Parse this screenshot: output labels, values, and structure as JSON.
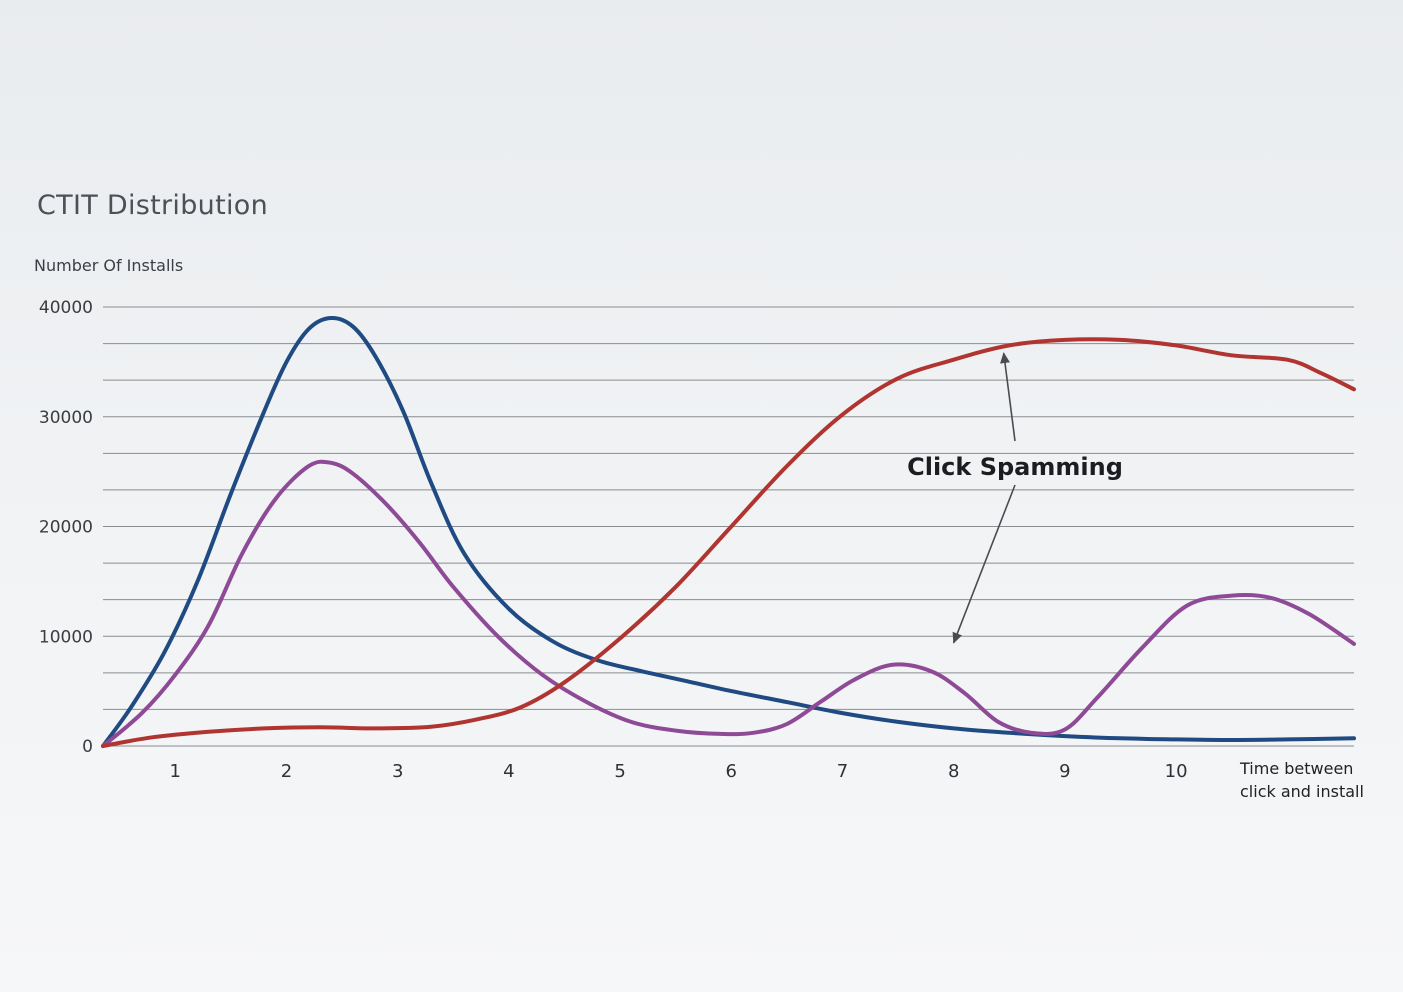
{
  "chart_data": {
    "type": "line",
    "title": "CTIT Distribution",
    "ylabel": "Number Of Installs",
    "xlabel": "Time between click and install",
    "xlim": [
      0.35,
      11.6
    ],
    "ylim": [
      0,
      40000
    ],
    "y_ticks": [
      "0",
      "10000",
      "20000",
      "30000",
      "40000"
    ],
    "y_tick_values": [
      0,
      10000,
      20000,
      30000,
      40000
    ],
    "x_ticks": [
      "1",
      "2",
      "3",
      "4",
      "5",
      "6",
      "7",
      "8",
      "9",
      "10"
    ],
    "x_tick_values": [
      1,
      2,
      3,
      4,
      5,
      6,
      7,
      8,
      9,
      10
    ],
    "gridlines": [
      0,
      3333,
      6667,
      10000,
      13333,
      16667,
      20000,
      23333,
      26667,
      30000,
      33333,
      36667,
      40000
    ],
    "grid": true,
    "series": [
      {
        "color": "#1f4a82",
        "x": [
          0.35,
          0.6,
          0.9,
          1.2,
          1.5,
          1.8,
          2.0,
          2.2,
          2.4,
          2.6,
          2.8,
          3.05,
          3.3,
          3.6,
          4.0,
          4.4,
          4.8,
          5.2,
          5.6,
          6.0,
          6.5,
          7.0,
          7.5,
          8.0,
          8.5,
          9.0,
          9.5,
          10.0,
          10.5,
          11.0,
          11.6
        ],
        "values": [
          0,
          3500,
          8500,
          15000,
          23000,
          30500,
          35000,
          38000,
          39000,
          38200,
          35500,
          30500,
          24000,
          17500,
          12500,
          9500,
          7800,
          6800,
          5900,
          5000,
          4000,
          3000,
          2200,
          1600,
          1200,
          900,
          700,
          600,
          550,
          600,
          700
        ]
      },
      {
        "color": "#8e4a96",
        "x": [
          0.35,
          0.7,
          1.0,
          1.3,
          1.6,
          1.9,
          2.2,
          2.4,
          2.6,
          2.9,
          3.2,
          3.5,
          3.9,
          4.3,
          4.7,
          5.1,
          5.5,
          5.9,
          6.2,
          6.5,
          6.8,
          7.1,
          7.45,
          7.8,
          8.1,
          8.4,
          8.7,
          9.0,
          9.3,
          9.7,
          10.1,
          10.5,
          10.85,
          11.2,
          11.6
        ],
        "values": [
          0,
          3000,
          6500,
          11000,
          17500,
          22500,
          25500,
          25800,
          24800,
          22000,
          18500,
          14500,
          10000,
          6500,
          4000,
          2200,
          1400,
          1100,
          1200,
          2000,
          4000,
          6000,
          7400,
          6800,
          4800,
          2200,
          1200,
          1500,
          4500,
          9000,
          12800,
          13700,
          13500,
          12000,
          9300
        ]
      },
      {
        "color": "#b03530",
        "x": [
          0.35,
          0.8,
          1.3,
          1.8,
          2.3,
          2.8,
          3.3,
          3.7,
          4.1,
          4.5,
          5.0,
          5.5,
          6.0,
          6.5,
          7.0,
          7.5,
          8.0,
          8.5,
          9.0,
          9.5,
          10.0,
          10.5,
          11.0,
          11.3,
          11.6
        ],
        "values": [
          0,
          800,
          1300,
          1600,
          1700,
          1600,
          1750,
          2400,
          3500,
          5800,
          9800,
          14500,
          20000,
          25500,
          30200,
          33500,
          35200,
          36500,
          37000,
          37000,
          36500,
          35600,
          35200,
          34000,
          32500
        ]
      }
    ],
    "annotation": {
      "text": "Click Spamming",
      "targets": [
        {
          "x": 8.45,
          "y": 35800
        },
        {
          "x": 8.0,
          "y": 9400
        }
      ]
    }
  }
}
